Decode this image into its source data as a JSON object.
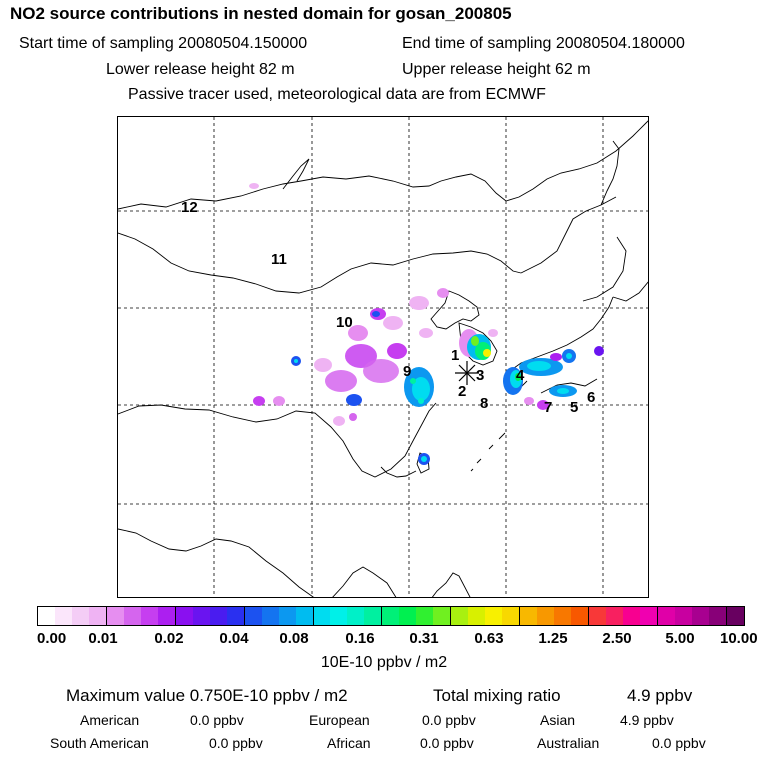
{
  "title": "NO2 source contributions in nested domain for gosan_200805",
  "header": {
    "start_label": "Start time of sampling 20080504.150000",
    "end_label": "End time of sampling 20080504.180000",
    "lower_label": "Lower release height   82 m",
    "upper_label": "Upper release height   62 m",
    "note": "Passive tracer used, meteorological data are from ECMWF"
  },
  "map": {
    "region_labels": [
      "1",
      "2",
      "3",
      "4",
      "5",
      "6",
      "7",
      "8",
      "9",
      "10",
      "11",
      "12"
    ],
    "receptor_marker": "receptor-star"
  },
  "colorbar": {
    "tick_labels": [
      "0.00",
      "0.01",
      "0.02",
      "0.04",
      "0.08",
      "0.16",
      "0.31",
      "0.63",
      "1.25",
      "2.50",
      "5.00",
      "10.00"
    ],
    "unit": "10E-10 ppbv / m2",
    "colors": [
      "#ffffff",
      "#fbe6fb",
      "#f4cdf6",
      "#efb3f3",
      "#e68ef0",
      "#d565ee",
      "#c63ef0",
      "#ac1ff0",
      "#8a10f0",
      "#6a14f0",
      "#4a1cf0",
      "#2a30f0",
      "#1c52f0",
      "#1474f0",
      "#0c98f0",
      "#00bcf0",
      "#00dcf0",
      "#00f0e8",
      "#00f0c8",
      "#00f0a0",
      "#00f078",
      "#00f050",
      "#30f030",
      "#70f020",
      "#a8f010",
      "#d8f000",
      "#f8f000",
      "#f8d800",
      "#f8b800",
      "#f89800",
      "#f87800",
      "#f85800",
      "#f83838",
      "#f82060",
      "#f80090",
      "#f000b0",
      "#e000a8",
      "#c800a0",
      "#a80090",
      "#880078",
      "#680060"
    ]
  },
  "summary": {
    "max_label": "Maximum value  0.750E-10 ppbv / m2",
    "total_label": "Total mixing ratio",
    "total_value": "4.9 ppbv",
    "sources": [
      {
        "name": "American",
        "value": "0.0 ppbv"
      },
      {
        "name": "European",
        "value": "0.0 ppbv"
      },
      {
        "name": "Asian",
        "value": "4.9 ppbv"
      },
      {
        "name": "South American",
        "value": "0.0 ppbv"
      },
      {
        "name": "African",
        "value": "0.0 ppbv"
      },
      {
        "name": "Australian",
        "value": "0.0 ppbv"
      }
    ]
  }
}
